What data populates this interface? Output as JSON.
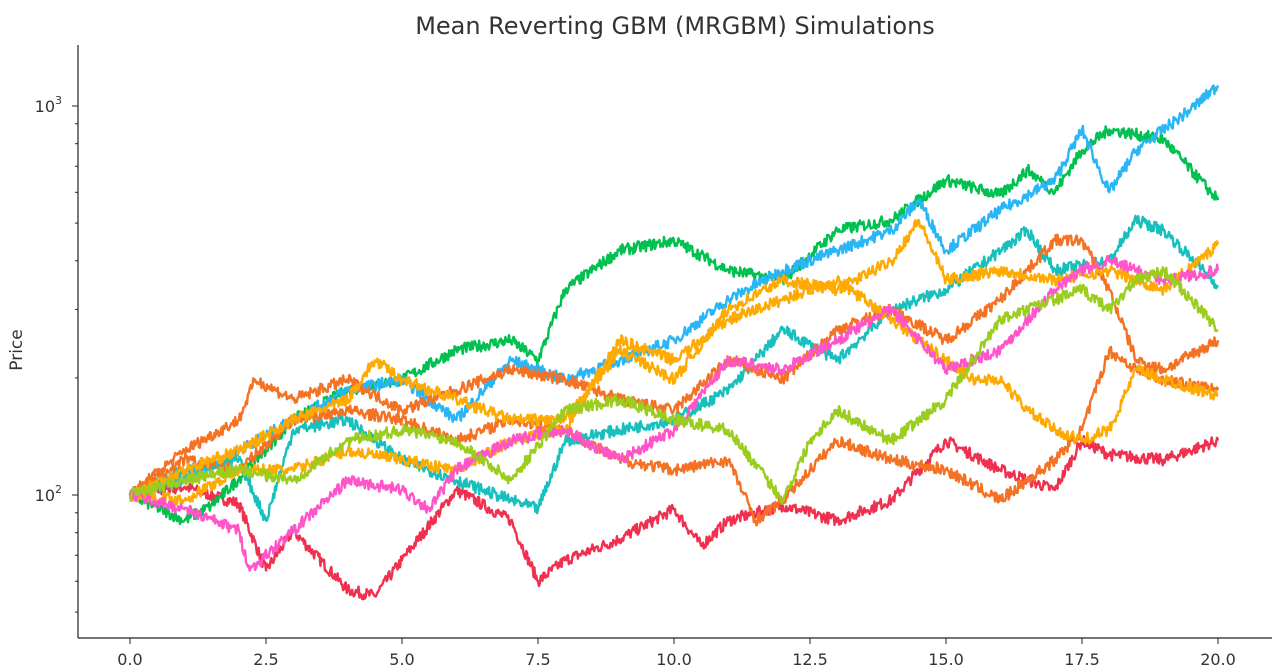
{
  "chart_data": {
    "type": "line",
    "title": "Mean Reverting GBM (MRGBM) Simulations",
    "xlabel": "",
    "ylabel": "Price",
    "xlim": [
      0,
      20
    ],
    "ylim": [
      43,
      1430
    ],
    "yscale": "log",
    "grid": false,
    "legend": "none",
    "x_ticks": [
      "0.0",
      "2.5",
      "5.0",
      "7.5",
      "10.0",
      "12.5",
      "15.0",
      "17.5",
      "20.0"
    ],
    "y_ticks": [
      {
        "base": "10",
        "exp": "2",
        "value": 100
      },
      {
        "base": "10",
        "exp": "3",
        "value": 1000
      }
    ],
    "series": [
      {
        "color": "#f0304f",
        "points": [
          [
            0,
            100
          ],
          [
            1,
            105
          ],
          [
            2,
            95
          ],
          [
            2.5,
            64
          ],
          [
            3,
            81
          ],
          [
            4,
            57
          ],
          [
            4.5,
            55
          ],
          [
            5,
            68
          ],
          [
            6,
            103
          ],
          [
            7,
            86
          ],
          [
            7.5,
            60
          ],
          [
            8,
            68
          ],
          [
            9,
            77
          ],
          [
            10,
            92
          ],
          [
            10.5,
            74
          ],
          [
            11,
            86
          ],
          [
            12,
            94
          ],
          [
            13,
            86
          ],
          [
            14,
            97
          ],
          [
            15,
            138
          ],
          [
            16,
            116
          ],
          [
            17,
            103
          ],
          [
            17.5,
            138
          ],
          [
            18,
            127
          ],
          [
            19,
            123
          ],
          [
            20,
            138
          ]
        ]
      },
      {
        "color": "#00c050",
        "points": [
          [
            0,
            100
          ],
          [
            1,
            86
          ],
          [
            1.5,
            94
          ],
          [
            2,
            110
          ],
          [
            3,
            156
          ],
          [
            4,
            186
          ],
          [
            5,
            198
          ],
          [
            6,
            236
          ],
          [
            7,
            250
          ],
          [
            7.5,
            222
          ],
          [
            8,
            337
          ],
          [
            9,
            425
          ],
          [
            10,
            451
          ],
          [
            11,
            378
          ],
          [
            12,
            357
          ],
          [
            13,
            479
          ],
          [
            14,
            509
          ],
          [
            15,
            645
          ],
          [
            16,
            590
          ],
          [
            16.5,
            685
          ],
          [
            17,
            600
          ],
          [
            17.5,
            770
          ],
          [
            18,
            870
          ],
          [
            19,
            820
          ],
          [
            20,
            573
          ]
        ]
      },
      {
        "color": "#29b6f6",
        "points": [
          [
            0,
            100
          ],
          [
            1,
            109
          ],
          [
            2,
            130
          ],
          [
            3,
            156
          ],
          [
            4,
            186
          ],
          [
            5,
            198
          ],
          [
            6,
            156
          ],
          [
            7,
            222
          ],
          [
            8,
            198
          ],
          [
            9,
            222
          ],
          [
            10,
            250
          ],
          [
            11,
            318
          ],
          [
            12,
            378
          ],
          [
            13,
            425
          ],
          [
            14,
            479
          ],
          [
            14.5,
            573
          ],
          [
            15,
            425
          ],
          [
            16,
            540
          ],
          [
            17,
            645
          ],
          [
            17.5,
            870
          ],
          [
            18,
            600
          ],
          [
            18.5,
            770
          ],
          [
            19,
            870
          ],
          [
            19.5,
            980
          ],
          [
            20,
            1130
          ]
        ]
      },
      {
        "color": "#17c0bd",
        "points": [
          [
            0,
            100
          ],
          [
            1,
            116
          ],
          [
            2,
            123
          ],
          [
            2.5,
            86
          ],
          [
            3,
            147
          ],
          [
            4,
            156
          ],
          [
            5,
            123
          ],
          [
            6,
            109
          ],
          [
            7,
            97
          ],
          [
            7.5,
            92
          ],
          [
            8,
            138
          ],
          [
            9,
            147
          ],
          [
            10,
            156
          ],
          [
            11,
            186
          ],
          [
            12,
            266
          ],
          [
            13,
            222
          ],
          [
            14,
            300
          ],
          [
            15,
            337
          ],
          [
            16,
            425
          ],
          [
            16.5,
            479
          ],
          [
            17,
            378
          ],
          [
            18,
            400
          ],
          [
            18.5,
            509
          ],
          [
            19,
            479
          ],
          [
            20,
            346
          ]
        ]
      },
      {
        "color": "#f57224",
        "points": [
          [
            0,
            100
          ],
          [
            1,
            130
          ],
          [
            2,
            156
          ],
          [
            2.3,
            198
          ],
          [
            3,
            176
          ],
          [
            4,
            198
          ],
          [
            5,
            165
          ],
          [
            6,
            186
          ],
          [
            7,
            210
          ],
          [
            8,
            198
          ],
          [
            9,
            176
          ],
          [
            10,
            165
          ],
          [
            11,
            222
          ],
          [
            12,
            198
          ],
          [
            13,
            266
          ],
          [
            14,
            300
          ],
          [
            15,
            250
          ],
          [
            16,
            318
          ],
          [
            17,
            451
          ],
          [
            17.5,
            451
          ],
          [
            18,
            337
          ],
          [
            18.5,
            222
          ],
          [
            19,
            210
          ],
          [
            20,
            250
          ]
        ]
      },
      {
        "color": "#f57224",
        "points": [
          [
            0,
            100
          ],
          [
            1,
            123
          ],
          [
            2,
            116
          ],
          [
            3,
            156
          ],
          [
            4,
            165
          ],
          [
            5,
            156
          ],
          [
            6,
            138
          ],
          [
            7,
            156
          ],
          [
            8,
            147
          ],
          [
            9,
            123
          ],
          [
            10,
            116
          ],
          [
            11,
            123
          ],
          [
            11.5,
            86
          ],
          [
            12,
            97
          ],
          [
            12.5,
            116
          ],
          [
            13,
            138
          ],
          [
            14,
            123
          ],
          [
            15,
            116
          ],
          [
            16,
            97
          ],
          [
            17,
            123
          ],
          [
            17.5,
            147
          ],
          [
            18,
            235
          ],
          [
            18.5,
            210
          ],
          [
            19,
            198
          ],
          [
            20,
            186
          ]
        ]
      },
      {
        "color": "#ffaa00",
        "points": [
          [
            0,
            100
          ],
          [
            1,
            116
          ],
          [
            2,
            130
          ],
          [
            3,
            156
          ],
          [
            4,
            176
          ],
          [
            4.5,
            222
          ],
          [
            5,
            198
          ],
          [
            6,
            176
          ],
          [
            7,
            156
          ],
          [
            8,
            156
          ],
          [
            9,
            235
          ],
          [
            10,
            198
          ],
          [
            11,
            300
          ],
          [
            12,
            357
          ],
          [
            13,
            337
          ],
          [
            14,
            400
          ],
          [
            14.5,
            509
          ],
          [
            15,
            357
          ],
          [
            16,
            378
          ],
          [
            17,
            357
          ],
          [
            18,
            378
          ],
          [
            19,
            337
          ],
          [
            20,
            440
          ]
        ]
      },
      {
        "color": "#ffaa00",
        "points": [
          [
            0,
            100
          ],
          [
            1,
            97
          ],
          [
            2,
            116
          ],
          [
            3,
            116
          ],
          [
            4,
            130
          ],
          [
            5,
            123
          ],
          [
            6,
            116
          ],
          [
            7,
            138
          ],
          [
            8,
            147
          ],
          [
            9,
            250
          ],
          [
            10,
            222
          ],
          [
            11,
            282
          ],
          [
            12,
            318
          ],
          [
            13,
            357
          ],
          [
            14,
            282
          ],
          [
            15,
            222
          ],
          [
            15.5,
            198
          ],
          [
            16,
            198
          ],
          [
            16.5,
            165
          ],
          [
            17,
            147
          ],
          [
            17.5,
            138
          ],
          [
            18,
            147
          ],
          [
            18.5,
            210
          ],
          [
            19,
            198
          ],
          [
            20,
            180
          ]
        ]
      },
      {
        "color": "#ff55c8",
        "points": [
          [
            0,
            100
          ],
          [
            1,
            92
          ],
          [
            2,
            81
          ],
          [
            2.2,
            64
          ],
          [
            3,
            81
          ],
          [
            4,
            109
          ],
          [
            5,
            103
          ],
          [
            5.5,
            92
          ],
          [
            6,
            116
          ],
          [
            7,
            138
          ],
          [
            8,
            147
          ],
          [
            9,
            123
          ],
          [
            10,
            147
          ],
          [
            11,
            222
          ],
          [
            12,
            210
          ],
          [
            13,
            250
          ],
          [
            14,
            300
          ],
          [
            15,
            210
          ],
          [
            16,
            236
          ],
          [
            17,
            337
          ],
          [
            17.5,
            378
          ],
          [
            18,
            400
          ],
          [
            19,
            357
          ],
          [
            20,
            378
          ]
        ]
      },
      {
        "color": "#9acd1e",
        "points": [
          [
            0,
            100
          ],
          [
            1,
            109
          ],
          [
            2,
            116
          ],
          [
            3,
            109
          ],
          [
            4,
            138
          ],
          [
            5,
            147
          ],
          [
            6,
            138
          ],
          [
            7,
            109
          ],
          [
            8,
            165
          ],
          [
            9,
            176
          ],
          [
            10,
            156
          ],
          [
            11,
            147
          ],
          [
            12,
            97
          ],
          [
            12.5,
            138
          ],
          [
            13,
            165
          ],
          [
            14,
            138
          ],
          [
            15,
            176
          ],
          [
            16,
            282
          ],
          [
            17,
            318
          ],
          [
            17.5,
            337
          ],
          [
            18,
            300
          ],
          [
            18.5,
            357
          ],
          [
            19,
            378
          ],
          [
            19.5,
            318
          ],
          [
            20,
            266
          ]
        ]
      }
    ]
  }
}
